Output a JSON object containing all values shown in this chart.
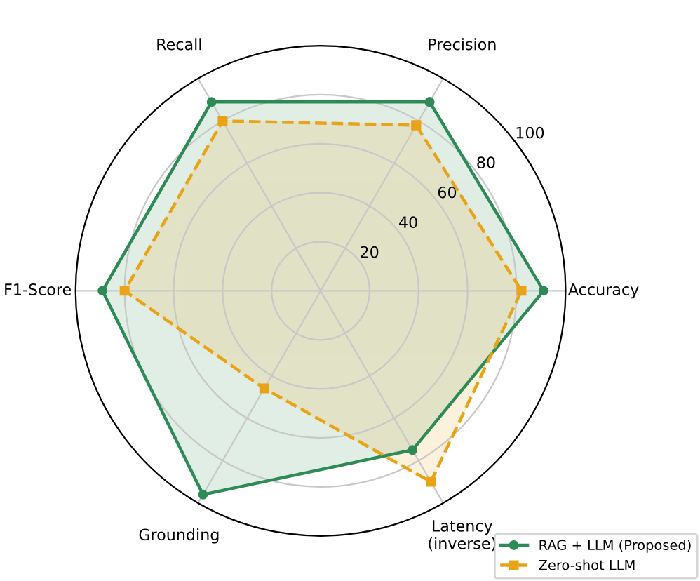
{
  "chart_data": {
    "type": "radar",
    "categories": [
      "Precision",
      "Accuracy",
      "Latency\n(inverse)",
      "Grounding",
      "F1-Score",
      "Recall"
    ],
    "ylim": [
      0,
      100
    ],
    "yticks": [
      20,
      40,
      60,
      80,
      100
    ],
    "grid": true,
    "legend": "bottom right",
    "series": [
      {
        "name": "RAG + LLM (Proposed)",
        "color": "#2e8b57",
        "marker": "circle",
        "line_style": "solid",
        "values": [
          89,
          91,
          75,
          96,
          89,
          89
        ]
      },
      {
        "name": "Zero-shot LLM",
        "color": "#e8a317",
        "marker": "square",
        "line_style": "dashed",
        "values": [
          78,
          82,
          90,
          46,
          80,
          80
        ]
      }
    ]
  }
}
